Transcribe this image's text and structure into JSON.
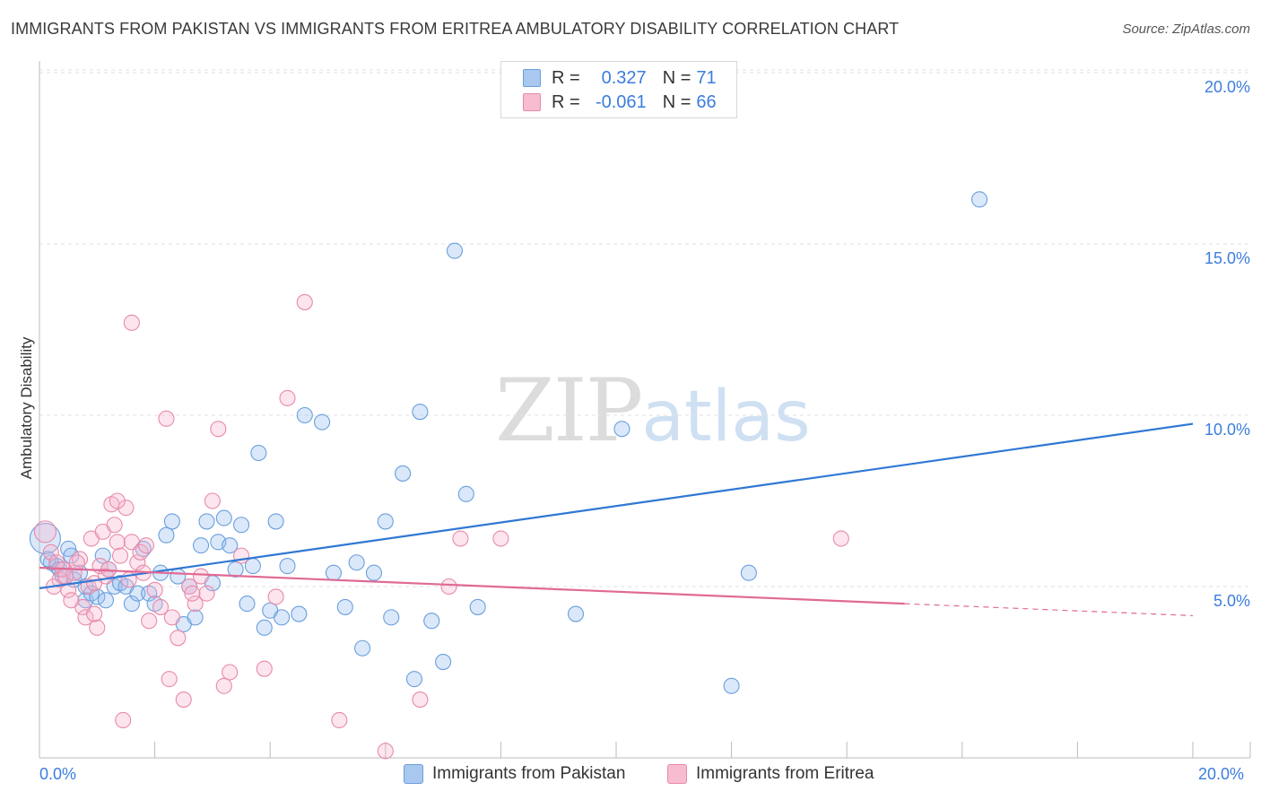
{
  "title": "IMMIGRANTS FROM PAKISTAN VS IMMIGRANTS FROM ERITREA AMBULATORY DISABILITY CORRELATION CHART",
  "source": "Source: ZipAtlas.com",
  "watermark": {
    "zip": "ZIP",
    "atlas": "atlas"
  },
  "legend": {
    "rows": [
      {
        "r_label": "R =",
        "r_value": "0.327",
        "n_label": "N =",
        "n_value": "71",
        "color": "#a8c8f0",
        "border": "#6a9fdc"
      },
      {
        "r_label": "R =",
        "r_value": "-0.061",
        "n_label": "N =",
        "n_value": "66",
        "color": "#f7bcd0",
        "border": "#e88aa8"
      }
    ]
  },
  "bottom_legend": [
    {
      "label": "Immigrants from Pakistan",
      "color": "#a8c8f0",
      "border": "#6a9fdc"
    },
    {
      "label": "Immigrants from Eritrea",
      "color": "#f7bcd0",
      "border": "#e88aa8"
    }
  ],
  "chart_data": {
    "type": "scatter",
    "title": "IMMIGRANTS FROM PAKISTAN VS IMMIGRANTS FROM ERITREA AMBULATORY DISABILITY CORRELATION CHART",
    "xlabel": "",
    "ylabel": "Ambulatory Disability",
    "xlim": [
      0,
      20
    ],
    "ylim": [
      0,
      20.5
    ],
    "x_tick_labels": [
      "0.0%",
      "20.0%"
    ],
    "y_tick_labels": [
      "5.0%",
      "10.0%",
      "15.0%",
      "20.0%"
    ],
    "y_tick_values": [
      5,
      10,
      15,
      20
    ],
    "series": [
      {
        "name": "Immigrants from Pakistan",
        "color": "#6a9fdc",
        "fill": "rgba(150,190,240,0.35)",
        "trend": {
          "x": [
            0,
            20
          ],
          "y": [
            4.95,
            9.75
          ],
          "color": "#2f78d4"
        },
        "points": [
          [
            0.1,
            6.4
          ],
          [
            0.2,
            5.7
          ],
          [
            0.3,
            5.6
          ],
          [
            0.4,
            5.3
          ],
          [
            0.5,
            6.1
          ],
          [
            0.6,
            5.2
          ],
          [
            0.7,
            5.4
          ],
          [
            0.8,
            4.6
          ],
          [
            0.8,
            5.0
          ],
          [
            0.9,
            4.8
          ],
          [
            1.0,
            4.7
          ],
          [
            1.1,
            5.9
          ],
          [
            1.2,
            5.5
          ],
          [
            1.3,
            5.0
          ],
          [
            1.4,
            5.1
          ],
          [
            1.5,
            5.0
          ],
          [
            1.6,
            4.5
          ],
          [
            1.7,
            4.8
          ],
          [
            1.8,
            6.1
          ],
          [
            1.9,
            4.8
          ],
          [
            2.0,
            4.5
          ],
          [
            2.1,
            5.4
          ],
          [
            2.2,
            6.5
          ],
          [
            2.3,
            6.9
          ],
          [
            2.4,
            5.3
          ],
          [
            2.5,
            3.9
          ],
          [
            2.6,
            5.0
          ],
          [
            2.7,
            4.1
          ],
          [
            2.8,
            6.2
          ],
          [
            2.9,
            6.9
          ],
          [
            3.0,
            5.1
          ],
          [
            3.1,
            6.3
          ],
          [
            3.2,
            7.0
          ],
          [
            3.3,
            6.2
          ],
          [
            3.4,
            5.5
          ],
          [
            3.5,
            6.8
          ],
          [
            3.6,
            4.5
          ],
          [
            3.7,
            5.6
          ],
          [
            3.8,
            8.9
          ],
          [
            3.9,
            3.8
          ],
          [
            4.0,
            4.3
          ],
          [
            4.1,
            6.9
          ],
          [
            4.2,
            4.1
          ],
          [
            4.3,
            5.6
          ],
          [
            4.5,
            4.2
          ],
          [
            4.6,
            10.0
          ],
          [
            4.9,
            9.8
          ],
          [
            5.1,
            5.4
          ],
          [
            5.3,
            4.4
          ],
          [
            5.5,
            5.7
          ],
          [
            5.6,
            3.2
          ],
          [
            5.8,
            5.4
          ],
          [
            6.0,
            6.9
          ],
          [
            6.1,
            4.1
          ],
          [
            6.3,
            8.3
          ],
          [
            6.5,
            2.3
          ],
          [
            6.6,
            10.1
          ],
          [
            6.8,
            4.0
          ],
          [
            7.0,
            2.8
          ],
          [
            7.2,
            14.8
          ],
          [
            7.4,
            7.7
          ],
          [
            7.6,
            4.4
          ],
          [
            9.3,
            4.2
          ],
          [
            10.1,
            9.6
          ],
          [
            12.0,
            2.1
          ],
          [
            12.3,
            5.4
          ],
          [
            16.3,
            16.3
          ],
          [
            0.15,
            5.8
          ],
          [
            0.35,
            5.5
          ],
          [
            0.55,
            5.9
          ],
          [
            1.15,
            4.6
          ]
        ]
      },
      {
        "name": "Immigrants from Eritrea",
        "color": "#e88aa8",
        "fill": "rgba(247,180,205,0.35)",
        "trend": {
          "x": [
            0,
            15
          ],
          "y": [
            5.55,
            4.5
          ],
          "color": "#e06a95",
          "dash_x": [
            15,
            20
          ],
          "dash_y": [
            4.5,
            4.15
          ]
        },
        "points": [
          [
            0.1,
            6.6
          ],
          [
            0.2,
            6.0
          ],
          [
            0.3,
            5.7
          ],
          [
            0.35,
            5.2
          ],
          [
            0.4,
            5.5
          ],
          [
            0.5,
            4.9
          ],
          [
            0.6,
            5.4
          ],
          [
            0.7,
            5.8
          ],
          [
            0.75,
            4.4
          ],
          [
            0.8,
            4.1
          ],
          [
            0.85,
            5.0
          ],
          [
            0.9,
            6.4
          ],
          [
            0.95,
            5.1
          ],
          [
            1.0,
            3.8
          ],
          [
            1.05,
            5.6
          ],
          [
            1.1,
            6.6
          ],
          [
            1.15,
            5.3
          ],
          [
            1.2,
            5.5
          ],
          [
            1.25,
            7.4
          ],
          [
            1.3,
            6.8
          ],
          [
            1.35,
            6.3
          ],
          [
            1.4,
            5.9
          ],
          [
            1.5,
            7.3
          ],
          [
            1.55,
            5.2
          ],
          [
            1.6,
            6.3
          ],
          [
            1.7,
            5.7
          ],
          [
            1.75,
            6.0
          ],
          [
            1.8,
            5.4
          ],
          [
            1.9,
            4.0
          ],
          [
            2.0,
            4.9
          ],
          [
            2.1,
            4.4
          ],
          [
            2.2,
            9.9
          ],
          [
            2.25,
            2.3
          ],
          [
            2.3,
            4.1
          ],
          [
            2.4,
            3.5
          ],
          [
            2.5,
            1.7
          ],
          [
            2.6,
            5.0
          ],
          [
            2.7,
            4.5
          ],
          [
            2.8,
            5.3
          ],
          [
            2.9,
            4.8
          ],
          [
            3.0,
            7.5
          ],
          [
            3.1,
            9.6
          ],
          [
            3.2,
            2.1
          ],
          [
            3.3,
            2.5
          ],
          [
            3.5,
            5.9
          ],
          [
            3.9,
            2.6
          ],
          [
            4.1,
            4.7
          ],
          [
            4.3,
            10.5
          ],
          [
            4.6,
            13.3
          ],
          [
            5.2,
            1.1
          ],
          [
            6.0,
            0.2
          ],
          [
            6.6,
            1.7
          ],
          [
            7.1,
            5.0
          ],
          [
            7.3,
            6.4
          ],
          [
            8.0,
            6.4
          ],
          [
            13.9,
            6.4
          ],
          [
            1.6,
            12.7
          ],
          [
            0.65,
            5.7
          ],
          [
            0.45,
            5.3
          ],
          [
            1.45,
            1.1
          ],
          [
            0.55,
            4.6
          ],
          [
            0.95,
            4.2
          ],
          [
            2.65,
            4.8
          ],
          [
            1.85,
            6.2
          ],
          [
            1.35,
            7.5
          ],
          [
            0.25,
            5.0
          ]
        ]
      }
    ]
  }
}
